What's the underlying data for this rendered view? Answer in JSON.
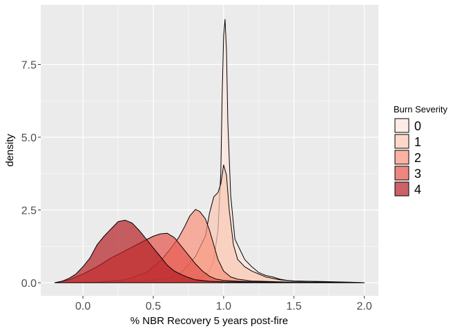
{
  "chart_data": {
    "type": "area",
    "xlabel": "% NBR Recovery 5 years post-fire",
    "ylabel": "density",
    "xlim": [
      -0.3,
      2.1
    ],
    "ylim": [
      -0.45,
      9.55
    ],
    "x_ticks": [
      0.0,
      0.5,
      1.0,
      1.5,
      2.0
    ],
    "x_tick_labels": [
      "0.0",
      "0.5",
      "1.0",
      "1.5",
      "2.0"
    ],
    "y_ticks": [
      0.0,
      2.5,
      5.0,
      7.5
    ],
    "y_tick_labels": [
      "0.0",
      "2.5",
      "5.0",
      "7.5"
    ],
    "grid": true,
    "legend": {
      "title": "Burn Severity",
      "position": "right"
    },
    "series": [
      {
        "name": "0",
        "color": "#fde6dc",
        "points": [
          [
            -0.2,
            0
          ],
          [
            0.3,
            0
          ],
          [
            0.6,
            0.01
          ],
          [
            0.75,
            0.05
          ],
          [
            0.85,
            0.2
          ],
          [
            0.9,
            0.4
          ],
          [
            0.93,
            0.8
          ],
          [
            0.96,
            1.8
          ],
          [
            0.98,
            3.8
          ],
          [
            0.99,
            6.5
          ],
          [
            1.0,
            8.5
          ],
          [
            1.01,
            9.05
          ],
          [
            1.02,
            8.0
          ],
          [
            1.03,
            5.5
          ],
          [
            1.05,
            3.0
          ],
          [
            1.08,
            1.5
          ],
          [
            1.12,
            1.1
          ],
          [
            1.15,
            0.8
          ],
          [
            1.2,
            0.55
          ],
          [
            1.25,
            0.35
          ],
          [
            1.3,
            0.25
          ],
          [
            1.35,
            0.2
          ],
          [
            1.4,
            0.12
          ],
          [
            1.45,
            0.08
          ],
          [
            1.5,
            0.06
          ],
          [
            1.6,
            0.05
          ],
          [
            1.7,
            0.04
          ],
          [
            1.8,
            0.03
          ],
          [
            1.9,
            0.02
          ],
          [
            2.0,
            0.0
          ]
        ]
      },
      {
        "name": "1",
        "color": "#fac7b4",
        "points": [
          [
            -0.2,
            0
          ],
          [
            0.2,
            0.02
          ],
          [
            0.4,
            0.05
          ],
          [
            0.6,
            0.15
          ],
          [
            0.7,
            0.35
          ],
          [
            0.8,
            0.9
          ],
          [
            0.87,
            1.6
          ],
          [
            0.9,
            2.4
          ],
          [
            0.93,
            2.95
          ],
          [
            0.96,
            3.1
          ],
          [
            0.98,
            3.4
          ],
          [
            1.0,
            4.05
          ],
          [
            1.02,
            3.7
          ],
          [
            1.04,
            2.5
          ],
          [
            1.07,
            1.3
          ],
          [
            1.1,
            0.8
          ],
          [
            1.15,
            0.55
          ],
          [
            1.2,
            0.4
          ],
          [
            1.3,
            0.2
          ],
          [
            1.4,
            0.1
          ],
          [
            1.5,
            0.06
          ],
          [
            1.7,
            0.03
          ],
          [
            2.0,
            0.0
          ]
        ]
      },
      {
        "name": "2",
        "color": "#f9917a",
        "points": [
          [
            -0.2,
            0
          ],
          [
            0.1,
            0.02
          ],
          [
            0.3,
            0.1
          ],
          [
            0.45,
            0.35
          ],
          [
            0.55,
            0.75
          ],
          [
            0.62,
            1.15
          ],
          [
            0.68,
            1.55
          ],
          [
            0.72,
            1.9
          ],
          [
            0.76,
            2.3
          ],
          [
            0.8,
            2.52
          ],
          [
            0.83,
            2.45
          ],
          [
            0.87,
            2.2
          ],
          [
            0.9,
            1.8
          ],
          [
            0.93,
            1.3
          ],
          [
            0.96,
            0.8
          ],
          [
            1.0,
            0.4
          ],
          [
            1.05,
            0.2
          ],
          [
            1.1,
            0.12
          ],
          [
            1.2,
            0.06
          ],
          [
            1.4,
            0.03
          ],
          [
            1.7,
            0.01
          ],
          [
            2.0,
            0.0
          ]
        ]
      },
      {
        "name": "3",
        "color": "#e4534a",
        "points": [
          [
            -0.2,
            0
          ],
          [
            -0.1,
            0.1
          ],
          [
            0.0,
            0.3
          ],
          [
            0.1,
            0.55
          ],
          [
            0.2,
            0.85
          ],
          [
            0.3,
            1.1
          ],
          [
            0.4,
            1.35
          ],
          [
            0.5,
            1.6
          ],
          [
            0.55,
            1.68
          ],
          [
            0.6,
            1.7
          ],
          [
            0.65,
            1.55
          ],
          [
            0.7,
            1.25
          ],
          [
            0.75,
            0.95
          ],
          [
            0.8,
            0.65
          ],
          [
            0.85,
            0.4
          ],
          [
            0.9,
            0.22
          ],
          [
            0.95,
            0.12
          ],
          [
            1.0,
            0.08
          ],
          [
            1.1,
            0.05
          ],
          [
            1.2,
            0.03
          ],
          [
            1.4,
            0.02
          ],
          [
            1.7,
            0.01
          ],
          [
            2.0,
            0.0
          ]
        ]
      },
      {
        "name": "4",
        "color": "#b42025",
        "points": [
          [
            -0.2,
            0
          ],
          [
            -0.15,
            0.05
          ],
          [
            -0.1,
            0.15
          ],
          [
            -0.05,
            0.3
          ],
          [
            0.0,
            0.55
          ],
          [
            0.05,
            0.85
          ],
          [
            0.1,
            1.3
          ],
          [
            0.15,
            1.6
          ],
          [
            0.2,
            1.85
          ],
          [
            0.25,
            2.1
          ],
          [
            0.3,
            2.15
          ],
          [
            0.35,
            2.05
          ],
          [
            0.4,
            1.8
          ],
          [
            0.45,
            1.5
          ],
          [
            0.5,
            1.2
          ],
          [
            0.55,
            0.9
          ],
          [
            0.6,
            0.6
          ],
          [
            0.65,
            0.4
          ],
          [
            0.7,
            0.28
          ],
          [
            0.75,
            0.18
          ],
          [
            0.8,
            0.1
          ],
          [
            0.9,
            0.05
          ],
          [
            1.0,
            0.03
          ],
          [
            1.2,
            0.02
          ],
          [
            1.5,
            0.01
          ],
          [
            2.0,
            0.0
          ]
        ]
      }
    ]
  }
}
